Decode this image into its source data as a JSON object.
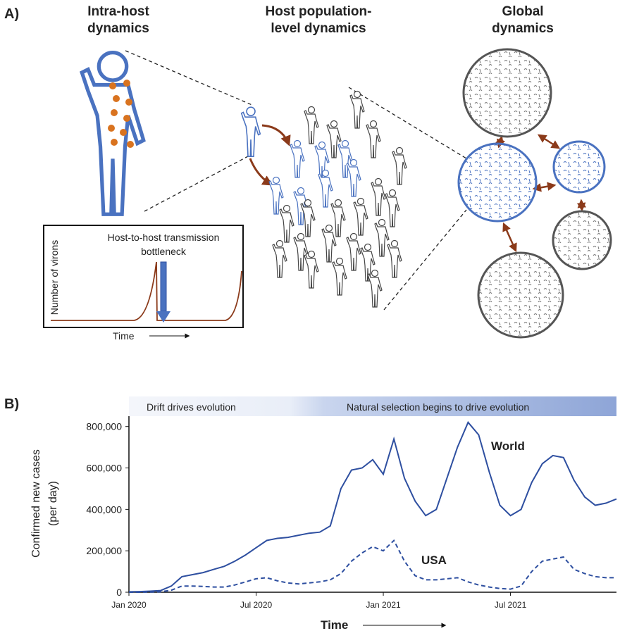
{
  "panel_a": {
    "label": "A)",
    "columns": [
      [
        "Intra-host",
        "dynamics"
      ],
      [
        "Host population-",
        "level dynamics"
      ],
      [
        "Global",
        "dynamics"
      ]
    ],
    "inset": {
      "title": [
        "Host-to-host transmission",
        "bottleneck"
      ],
      "y_label": "Number of virons",
      "x_label": "Time"
    }
  },
  "chart_data": {
    "type": "line",
    "panel_label": "B)",
    "phases": [
      "Drift drives evolution",
      "Natural selection begins to drive evolution"
    ],
    "y_label": [
      "Confirmed new cases",
      "(per day)"
    ],
    "x_label": "Time",
    "x": [
      0,
      0.5,
      1,
      1.5,
      2,
      2.5,
      3,
      3.5,
      4,
      4.5,
      5,
      5.5,
      6,
      6.5,
      7,
      7.5,
      8,
      8.5,
      9,
      9.5,
      10,
      10.5,
      11,
      11.5,
      12,
      12.5,
      13,
      13.5,
      14,
      14.5,
      15,
      15.5,
      16,
      16.5,
      17,
      17.5,
      18,
      18.5,
      19,
      19.5,
      20,
      20.5,
      21,
      21.5,
      22,
      22.5,
      23
    ],
    "xlim": [
      0,
      23
    ],
    "xticks": [
      {
        "value": 0,
        "label": "Jan 2020"
      },
      {
        "value": 6,
        "label": "Jul 2020"
      },
      {
        "value": 12,
        "label": "Jan 2021"
      },
      {
        "value": 18,
        "label": "Jul 2021"
      }
    ],
    "ylim": [
      0,
      850000
    ],
    "yticks": [
      0,
      {
        "value": 200000,
        "label": "200,000"
      },
      {
        "value": 400000,
        "label": "400,000"
      },
      {
        "value": 600000,
        "label": "600,000"
      },
      {
        "value": 800000,
        "label": "800,000"
      }
    ],
    "series": [
      {
        "name": "World",
        "color": "#2e4fa0",
        "line_style": "solid",
        "values": [
          2000,
          3000,
          5000,
          8000,
          30000,
          75000,
          85000,
          95000,
          110000,
          125000,
          150000,
          180000,
          215000,
          250000,
          260000,
          265000,
          275000,
          285000,
          290000,
          320000,
          500000,
          590000,
          600000,
          640000,
          570000,
          740000,
          550000,
          440000,
          370000,
          400000,
          550000,
          700000,
          820000,
          760000,
          580000,
          420000,
          370000,
          400000,
          530000,
          620000,
          660000,
          650000,
          540000,
          460000,
          420000,
          430000,
          450000
        ]
      },
      {
        "name": "USA",
        "color": "#2e4fa0",
        "line_style": "dashed",
        "values": [
          0,
          0,
          1000,
          2000,
          10000,
          30000,
          30000,
          28000,
          25000,
          25000,
          35000,
          50000,
          65000,
          70000,
          55000,
          45000,
          40000,
          45000,
          50000,
          60000,
          90000,
          150000,
          190000,
          220000,
          200000,
          250000,
          150000,
          80000,
          60000,
          60000,
          65000,
          70000,
          50000,
          35000,
          25000,
          18000,
          15000,
          30000,
          100000,
          150000,
          160000,
          170000,
          110000,
          90000,
          75000,
          70000,
          70000
        ]
      }
    ]
  }
}
